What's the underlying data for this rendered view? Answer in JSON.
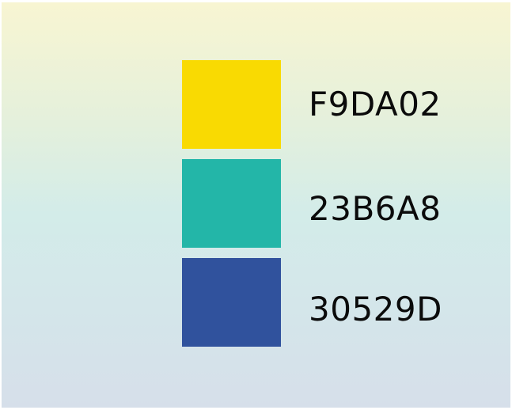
{
  "swatches": [
    {
      "hex": "F9DA02",
      "color": "#F9DA02"
    },
    {
      "hex": "23B6A8",
      "color": "#23B6A8"
    },
    {
      "hex": "30529D",
      "color": "#30529D"
    }
  ]
}
